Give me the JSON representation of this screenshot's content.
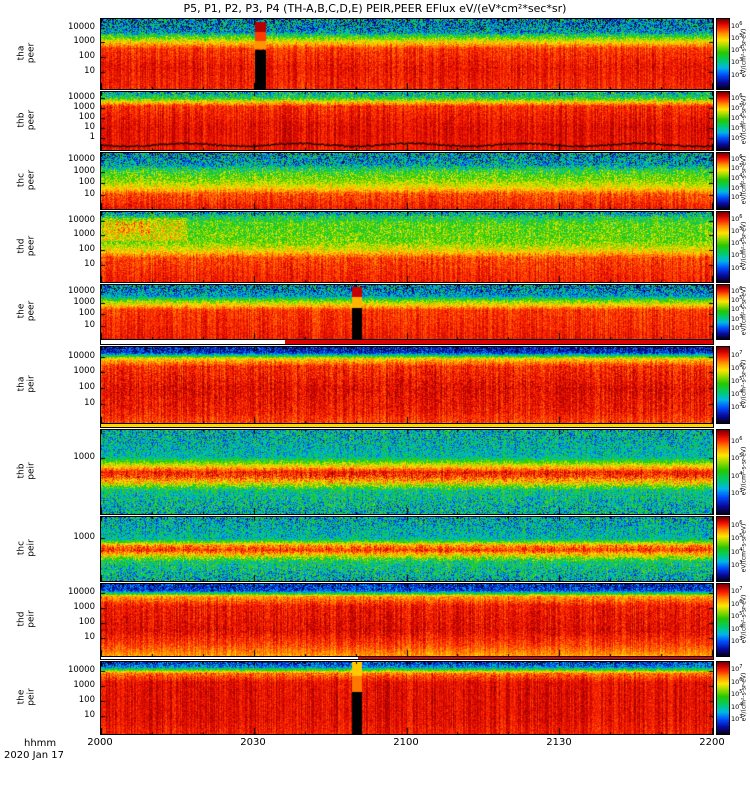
{
  "chart_data": {
    "type": "spectrogram",
    "title": "P5, P1, P2, P3, P4 (TH-A,B,C,D,E) PEIR,PEER EFlux eV/(eV*cm²*sec*sr)",
    "x": {
      "label": "hhmm",
      "date": "2020 Jan 17",
      "ticks": [
        "2000",
        "2030",
        "2100",
        "2130",
        "2200"
      ],
      "range_minutes": [
        1200,
        1320
      ],
      "minor_ticks_per_major": 3
    },
    "colorbar_unit": "eV/(cm²-s-sr-eV)",
    "palette": [
      [
        0.0,
        "#050020"
      ],
      [
        0.09,
        "#0a0aa0"
      ],
      [
        0.2,
        "#0050ff"
      ],
      [
        0.3,
        "#00b8e8"
      ],
      [
        0.4,
        "#00cc70"
      ],
      [
        0.52,
        "#28c800"
      ],
      [
        0.62,
        "#a0dc00"
      ],
      [
        0.7,
        "#ffe600"
      ],
      [
        0.8,
        "#ff8c00"
      ],
      [
        0.88,
        "#ff2800"
      ],
      [
        0.95,
        "#c80000"
      ],
      [
        1.0,
        "#7a0000"
      ]
    ],
    "panels": [
      {
        "name": "tha peer",
        "ylabel_lines": [
          "tha",
          "peer"
        ],
        "height": 70,
        "yticks": [
          "10000",
          "1000",
          "100",
          "10"
        ],
        "cticks": [
          "10^6",
          "10^5",
          "10^4",
          "10^3",
          "10^2"
        ],
        "profile": [
          [
            0,
            0.24
          ],
          [
            0.18,
            0.28
          ],
          [
            0.27,
            0.58
          ],
          [
            0.33,
            0.72
          ],
          [
            0.42,
            0.87
          ],
          [
            0.7,
            0.91
          ],
          [
            1,
            0.89
          ]
        ],
        "noise": [
          [
            0,
            0.3
          ],
          [
            0.2,
            0.22
          ],
          [
            0.3,
            0.1
          ],
          [
            0.42,
            0.05
          ],
          [
            1,
            0.04
          ]
        ],
        "features": [
          {
            "type": "gap",
            "x": 0.252,
            "w": 0.018,
            "segments": [
              [
                0.04,
                0.18,
                "#b40000"
              ],
              [
                0.18,
                0.32,
                "#ff3c00"
              ],
              [
                0.32,
                0.44,
                "#ff9600"
              ],
              [
                0.44,
                1,
                "#000000"
              ]
            ]
          }
        ]
      },
      {
        "name": "thb peer",
        "ylabel_lines": [
          "thb",
          "peer"
        ],
        "height": 58,
        "yticks": [
          "10000",
          "1000",
          "100",
          "10",
          "1"
        ],
        "cticks": [
          "10^6",
          "10^5",
          "10^4",
          "10^3",
          "10^2"
        ],
        "profile": [
          [
            0,
            0.36
          ],
          [
            0.08,
            0.42
          ],
          [
            0.15,
            0.68
          ],
          [
            0.24,
            0.88
          ],
          [
            0.6,
            0.92
          ],
          [
            1,
            0.91
          ]
        ],
        "noise": [
          [
            0,
            0.26
          ],
          [
            0.15,
            0.12
          ],
          [
            0.24,
            0.05
          ],
          [
            1,
            0.03
          ]
        ],
        "features": [
          {
            "type": "trace",
            "d": 0.9,
            "amp": 0.025,
            "color": "#000000"
          }
        ]
      },
      {
        "name": "thc peer",
        "ylabel_lines": [
          "thc",
          "peer"
        ],
        "height": 56,
        "yticks": [
          "10000",
          "1000",
          "100",
          "10"
        ],
        "cticks": [
          "10^6",
          "10^5",
          "10^4",
          "10^3",
          "10^2"
        ],
        "profile": [
          [
            0,
            0.27
          ],
          [
            0.2,
            0.31
          ],
          [
            0.33,
            0.5
          ],
          [
            0.5,
            0.6
          ],
          [
            0.62,
            0.7
          ],
          [
            0.74,
            0.85
          ],
          [
            1,
            0.9
          ]
        ],
        "noise": [
          [
            0,
            0.3
          ],
          [
            0.33,
            0.18
          ],
          [
            0.62,
            0.08
          ],
          [
            1,
            0.04
          ]
        ]
      },
      {
        "name": "thd peer",
        "ylabel_lines": [
          "thd",
          "peer"
        ],
        "height": 70,
        "yticks": [
          "10000",
          "1000",
          "100",
          "10"
        ],
        "cticks": [
          "10^6",
          "10^5",
          "10^4",
          "10^3",
          "10^2"
        ],
        "profile": [
          [
            0,
            0.3
          ],
          [
            0.07,
            0.44
          ],
          [
            0.16,
            0.54
          ],
          [
            0.42,
            0.57
          ],
          [
            0.55,
            0.7
          ],
          [
            0.66,
            0.86
          ],
          [
            1,
            0.9
          ]
        ],
        "noise": [
          [
            0,
            0.28
          ],
          [
            0.1,
            0.16
          ],
          [
            0.45,
            0.13
          ],
          [
            0.66,
            0.06
          ],
          [
            1,
            0.04
          ]
        ],
        "regions": [
          [
            0,
            0.14,
            0.08,
            0.42,
            0.12
          ],
          [
            0.02,
            0.08,
            0.12,
            0.3,
            0.08
          ]
        ]
      },
      {
        "name": "the peer",
        "ylabel_lines": [
          "the",
          "peer"
        ],
        "height": 54,
        "yticks": [
          "10000",
          "1000",
          "100",
          "10"
        ],
        "cticks": [
          "10^6",
          "10^5",
          "10^4",
          "10^3",
          "10^2"
        ],
        "profile": [
          [
            0,
            0.24
          ],
          [
            0.2,
            0.29
          ],
          [
            0.3,
            0.6
          ],
          [
            0.37,
            0.72
          ],
          [
            0.46,
            0.87
          ],
          [
            1,
            0.9
          ]
        ],
        "noise": [
          [
            0,
            0.3
          ],
          [
            0.22,
            0.16
          ],
          [
            0.46,
            0.05
          ],
          [
            1,
            0.04
          ]
        ],
        "features": [
          {
            "type": "gap",
            "x": 0.41,
            "w": 0.016,
            "segments": [
              [
                0.04,
                0.22,
                "#c80000"
              ],
              [
                0.22,
                0.42,
                "#ffb400"
              ],
              [
                0.42,
                1,
                "#000000"
              ]
            ]
          }
        ]
      },
      {
        "name": "tha peir",
        "ylabel_lines": [
          "tha",
          "peir"
        ],
        "height": 76,
        "yticks": [
          "10000",
          "1000",
          "100",
          "10"
        ],
        "cticks": [
          "10^7",
          "10^6",
          "10^5",
          "10^4",
          "10^3"
        ],
        "profile": [
          [
            0,
            0.1
          ],
          [
            0.07,
            0.14
          ],
          [
            0.15,
            0.72
          ],
          [
            0.25,
            0.88
          ],
          [
            0.55,
            0.92
          ],
          [
            0.85,
            0.9
          ],
          [
            1,
            0.86
          ]
        ],
        "noise": [
          [
            0,
            0.16
          ],
          [
            0.1,
            0.12
          ],
          [
            0.22,
            0.06
          ],
          [
            1,
            0.05
          ]
        ]
      },
      {
        "name": "thb peir",
        "ylabel_lines": [
          "thb",
          "peir"
        ],
        "height": 84,
        "yticks": [
          "1000"
        ],
        "cticks": [
          "10^6",
          "10^5",
          "10^4",
          "10^3"
        ],
        "profile": [
          [
            0,
            0.34
          ],
          [
            0.32,
            0.35
          ],
          [
            0.42,
            0.68
          ],
          [
            0.5,
            0.9
          ],
          [
            0.56,
            0.86
          ],
          [
            0.64,
            0.68
          ],
          [
            0.72,
            0.4
          ],
          [
            1,
            0.34
          ]
        ],
        "noise": [
          [
            0,
            0.24
          ],
          [
            0.34,
            0.14
          ],
          [
            0.5,
            0.06
          ],
          [
            0.66,
            0.16
          ],
          [
            1,
            0.24
          ]
        ]
      },
      {
        "name": "thc peir",
        "ylabel_lines": [
          "thc",
          "peir"
        ],
        "height": 64,
        "yticks": [
          "1000"
        ],
        "cticks": [
          "10^6",
          "10^5",
          "10^4",
          "10^3"
        ],
        "profile": [
          [
            0,
            0.33
          ],
          [
            0.34,
            0.35
          ],
          [
            0.44,
            0.78
          ],
          [
            0.52,
            0.88
          ],
          [
            0.6,
            0.7
          ],
          [
            0.7,
            0.42
          ],
          [
            1,
            0.33
          ]
        ],
        "noise": [
          [
            0,
            0.24
          ],
          [
            0.36,
            0.14
          ],
          [
            0.52,
            0.07
          ],
          [
            0.68,
            0.18
          ],
          [
            1,
            0.24
          ]
        ]
      },
      {
        "name": "thd peir",
        "ylabel_lines": [
          "thd",
          "peir"
        ],
        "height": 72,
        "yticks": [
          "10000",
          "1000",
          "100",
          "10"
        ],
        "cticks": [
          "10^7",
          "10^6",
          "10^5",
          "10^4",
          "10^3"
        ],
        "profile": [
          [
            0,
            0.12
          ],
          [
            0.09,
            0.18
          ],
          [
            0.17,
            0.78
          ],
          [
            0.3,
            0.9
          ],
          [
            0.65,
            0.92
          ],
          [
            0.85,
            0.86
          ],
          [
            1,
            0.78
          ]
        ],
        "noise": [
          [
            0,
            0.18
          ],
          [
            0.14,
            0.09
          ],
          [
            0.3,
            0.05
          ],
          [
            1,
            0.05
          ]
        ]
      },
      {
        "name": "the peir",
        "ylabel_lines": [
          "the",
          "peir"
        ],
        "height": 72,
        "yticks": [
          "10000",
          "1000",
          "100",
          "10"
        ],
        "cticks": [
          "10^7",
          "10^6",
          "10^5",
          "10^4",
          "10^3"
        ],
        "profile": [
          [
            0,
            0.14
          ],
          [
            0.07,
            0.28
          ],
          [
            0.15,
            0.82
          ],
          [
            0.28,
            0.92
          ],
          [
            0.8,
            0.92
          ],
          [
            1,
            0.9
          ]
        ],
        "noise": [
          [
            0,
            0.2
          ],
          [
            0.12,
            0.09
          ],
          [
            0.28,
            0.04
          ],
          [
            1,
            0.04
          ]
        ],
        "features": [
          {
            "type": "gap",
            "x": 0.41,
            "w": 0.016,
            "segments": [
              [
                0.0,
                0.2,
                "#ffc800"
              ],
              [
                0.2,
                0.42,
                "#ff7800"
              ],
              [
                0.42,
                1,
                "#000000"
              ]
            ]
          }
        ]
      }
    ],
    "stripes": [
      {
        "after": 4,
        "height": 6,
        "bg": "#ffffff",
        "segments": [
          [
            0.3,
            1.0,
            "#dd0000"
          ]
        ]
      },
      {
        "after": 5,
        "height": 5,
        "bg": "#ffffff",
        "segments": [
          [
            0.0,
            1.0,
            "#ffd800"
          ]
        ]
      },
      {
        "after": 8,
        "height": 4,
        "bg": "#ffffff",
        "segments": [
          [
            0.42,
            1.0,
            "#dd0000"
          ]
        ]
      }
    ]
  }
}
